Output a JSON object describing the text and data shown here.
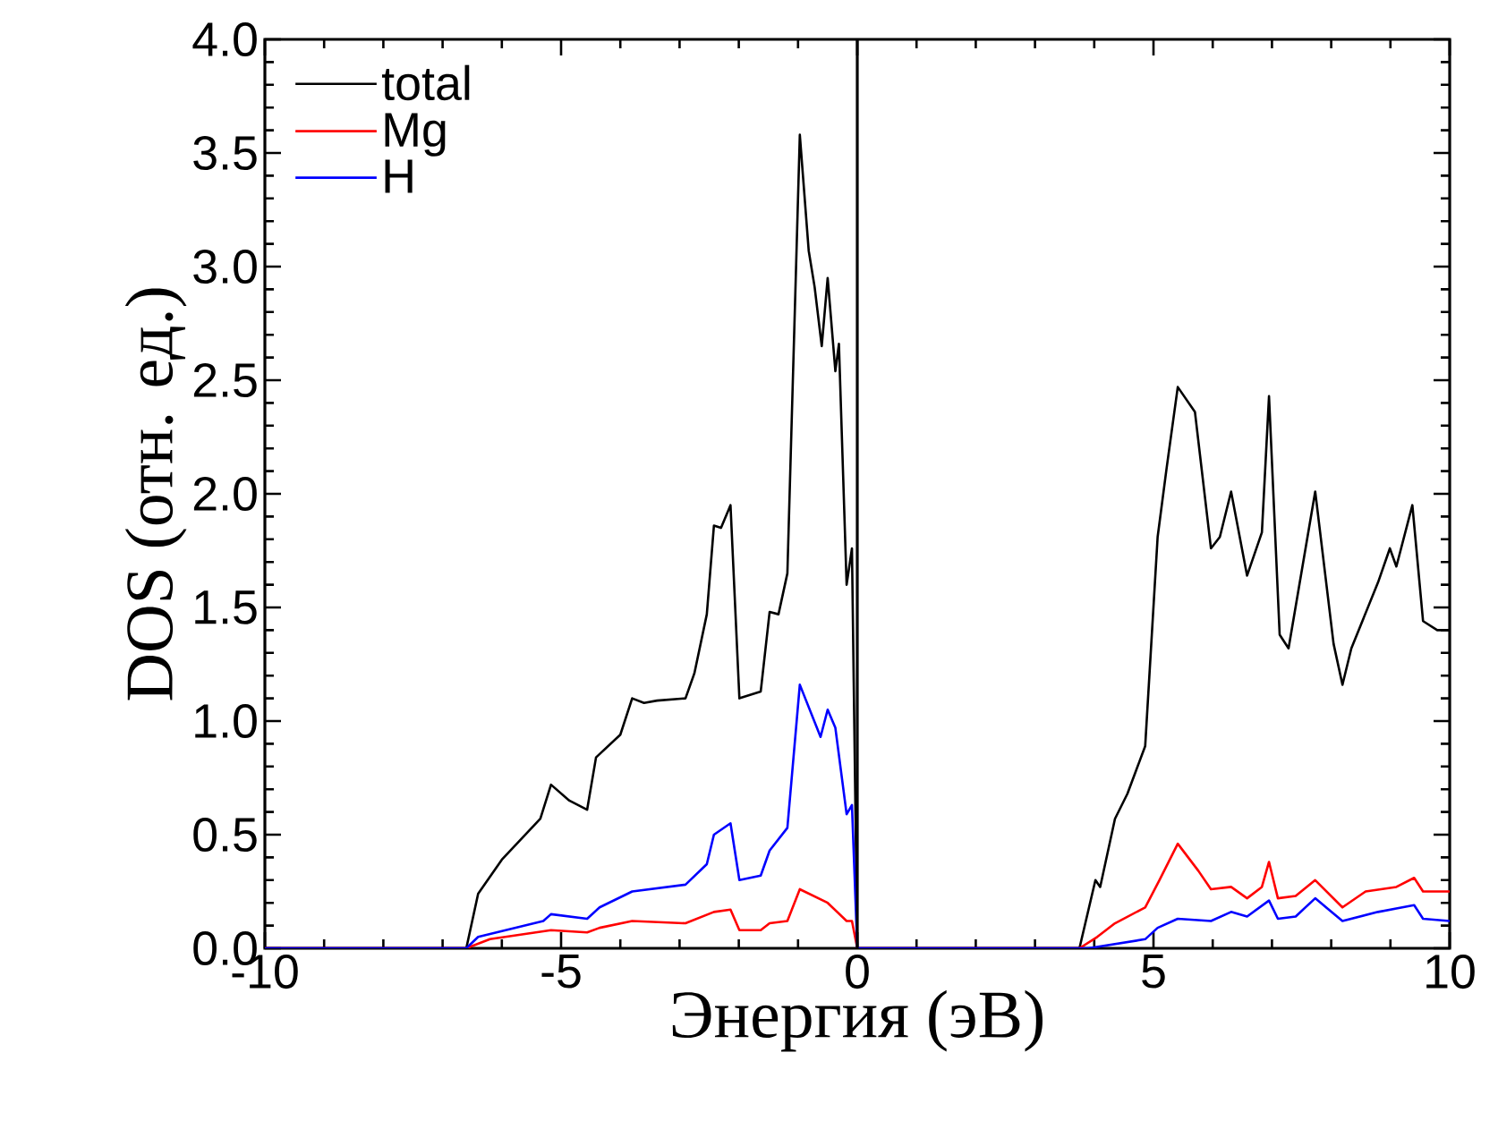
{
  "chart_data": {
    "type": "line",
    "xlabel": "Энергия (эВ)",
    "ylabel": "DOS (отн. ед.)",
    "xlim": [
      -10,
      10
    ],
    "ylim": [
      0,
      4.0
    ],
    "xticks": [
      -10,
      -5,
      0,
      5,
      10
    ],
    "yticks": [
      {
        "value": 0,
        "label": "0.0"
      },
      {
        "value": 0.5,
        "label": "0.5"
      },
      {
        "value": 1,
        "label": "1.0"
      },
      {
        "value": 1.5,
        "label": "1.5"
      },
      {
        "value": 2,
        "label": "2.0"
      },
      {
        "value": 2.5,
        "label": "2.5"
      },
      {
        "value": 3,
        "label": "3.0"
      },
      {
        "value": 3.5,
        "label": "3.5"
      },
      {
        "value": 4,
        "label": "4.0"
      }
    ],
    "legend": "top left",
    "ref_lines": [
      {
        "axis": "x",
        "value": 0,
        "color": "#000000"
      }
    ],
    "series": [
      {
        "name": "total",
        "color": "#000000",
        "x": [
          -10,
          -6.6,
          -6.4,
          -6.0,
          -5.35,
          -5.17,
          -4.86,
          -4.56,
          -4.41,
          -4.0,
          -3.8,
          -3.6,
          -3.38,
          -2.9,
          -2.75,
          -2.54,
          -2.42,
          -2.3,
          -2.14,
          -1.99,
          -1.63,
          -1.48,
          -1.33,
          -1.18,
          -0.97,
          -0.82,
          -0.72,
          -0.6,
          -0.5,
          -0.37,
          -0.31,
          -0.18,
          -0.09,
          0,
          3.75,
          4.02,
          4.1,
          4.35,
          4.56,
          4.86,
          5.07,
          5.22,
          5.41,
          5.7,
          5.97,
          6.12,
          6.31,
          6.58,
          6.83,
          6.95,
          7.13,
          7.28,
          7.43,
          7.73,
          8.04,
          8.19,
          8.34,
          8.79,
          8.99,
          9.1,
          9.37,
          9.55,
          9.79,
          10
        ],
        "values": [
          0,
          0,
          0.24,
          0.39,
          0.57,
          0.72,
          0.65,
          0.61,
          0.84,
          0.94,
          1.1,
          1.08,
          1.09,
          1.1,
          1.21,
          1.47,
          1.86,
          1.85,
          1.95,
          1.1,
          1.13,
          1.48,
          1.47,
          1.65,
          3.58,
          3.07,
          2.91,
          2.65,
          2.95,
          2.54,
          2.66,
          1.6,
          1.76,
          0,
          0,
          0.3,
          0.27,
          0.57,
          0.68,
          0.89,
          1.81,
          2.11,
          2.47,
          2.36,
          1.76,
          1.81,
          2.01,
          1.64,
          1.83,
          2.43,
          1.38,
          1.32,
          1.55,
          2.01,
          1.34,
          1.16,
          1.32,
          1.61,
          1.76,
          1.68,
          1.95,
          1.44,
          1.4,
          1.4
        ]
      },
      {
        "name": "Mg",
        "color": "#ff0000",
        "x": [
          -10,
          -6.6,
          -6.2,
          -5.17,
          -4.56,
          -4.35,
          -3.8,
          -2.9,
          -2.42,
          -2.14,
          -1.99,
          -1.63,
          -1.48,
          -1.18,
          -0.97,
          -0.5,
          -0.18,
          -0.09,
          0,
          3.75,
          4.05,
          4.35,
          4.86,
          5.1,
          5.41,
          5.76,
          5.97,
          6.31,
          6.58,
          6.83,
          6.95,
          7.1,
          7.4,
          7.73,
          8.19,
          8.58,
          9.1,
          9.4,
          9.55,
          10
        ],
        "values": [
          0,
          0,
          0.04,
          0.08,
          0.07,
          0.09,
          0.12,
          0.11,
          0.16,
          0.17,
          0.08,
          0.08,
          0.11,
          0.12,
          0.26,
          0.2,
          0.12,
          0.12,
          0,
          0,
          0.05,
          0.11,
          0.18,
          0.3,
          0.46,
          0.34,
          0.26,
          0.27,
          0.22,
          0.27,
          0.38,
          0.22,
          0.23,
          0.3,
          0.18,
          0.25,
          0.27,
          0.31,
          0.25,
          0.25
        ]
      },
      {
        "name": "H",
        "color": "#0000ff",
        "x": [
          -10,
          -6.6,
          -6.4,
          -5.3,
          -5.17,
          -4.56,
          -4.35,
          -3.8,
          -2.9,
          -2.54,
          -2.42,
          -2.14,
          -1.99,
          -1.63,
          -1.48,
          -1.18,
          -0.97,
          -0.62,
          -0.5,
          -0.37,
          -0.18,
          -0.09,
          0,
          3.9,
          4.86,
          5.07,
          5.41,
          5.97,
          6.31,
          6.58,
          6.95,
          7.1,
          7.4,
          7.73,
          8.19,
          8.79,
          9.4,
          9.55,
          10
        ],
        "values": [
          0,
          0,
          0.05,
          0.12,
          0.15,
          0.13,
          0.18,
          0.25,
          0.28,
          0.37,
          0.5,
          0.55,
          0.3,
          0.32,
          0.43,
          0.53,
          1.16,
          0.93,
          1.05,
          0.97,
          0.59,
          0.63,
          0,
          0,
          0.04,
          0.09,
          0.13,
          0.12,
          0.16,
          0.14,
          0.21,
          0.13,
          0.14,
          0.22,
          0.12,
          0.16,
          0.19,
          0.13,
          0.12
        ]
      }
    ]
  }
}
